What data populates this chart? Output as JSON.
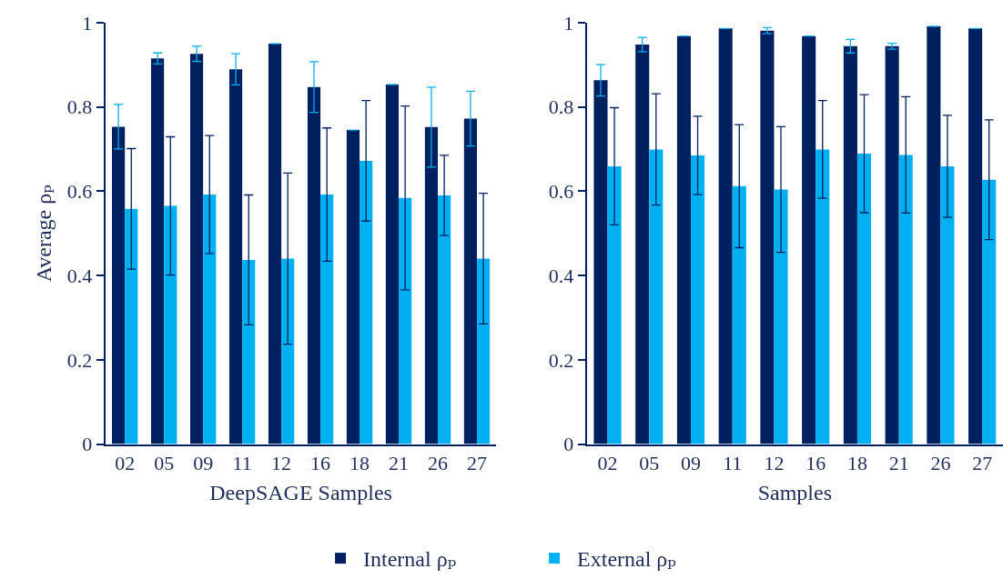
{
  "chart_data": [
    {
      "type": "bar",
      "ylabel": "Average ρₚ",
      "xlabel": "DeepSAGE Samples",
      "categories": [
        "02",
        "05",
        "09",
        "11",
        "12",
        "16",
        "18",
        "21",
        "26",
        "27"
      ],
      "ylim": [
        0,
        1
      ],
      "yticks": [
        0,
        0.2,
        0.4,
        0.6,
        0.8,
        1
      ],
      "legend": "bottom",
      "series": [
        {
          "name": "Internal ρₚ",
          "color": "#002060",
          "values": [
            0.753,
            0.915,
            0.926,
            0.889,
            0.95,
            0.847,
            0.745,
            0.853,
            0.752,
            0.772
          ],
          "errors": [
            0.053,
            0.013,
            0.018,
            0.037,
            null,
            0.06,
            null,
            null,
            0.095,
            0.065
          ]
        },
        {
          "name": "External ρₚ",
          "color": "#00b0f0",
          "values": [
            0.558,
            0.565,
            0.592,
            0.437,
            0.44,
            0.592,
            0.672,
            0.584,
            0.59,
            0.44
          ],
          "errors": [
            0.143,
            0.164,
            0.14,
            0.154,
            0.203,
            0.158,
            0.143,
            0.218,
            0.095,
            0.155
          ]
        }
      ]
    },
    {
      "type": "bar",
      "xlabel": "Samples",
      "categories": [
        "02",
        "05",
        "09",
        "11",
        "12",
        "16",
        "18",
        "21",
        "26",
        "27"
      ],
      "ylim": [
        0,
        1
      ],
      "yticks": [
        0,
        0.2,
        0.4,
        0.6,
        0.8,
        1
      ],
      "series": [
        {
          "color": "#002060",
          "values": [
            0.863,
            0.948,
            0.968,
            0.986,
            0.981,
            0.968,
            0.944,
            0.944,
            0.991,
            0.986
          ],
          "errors": [
            0.037,
            0.017,
            null,
            null,
            0.007,
            null,
            0.016,
            0.007,
            null,
            null
          ]
        },
        {
          "color": "#00b0f0",
          "values": [
            0.659,
            0.699,
            0.685,
            0.612,
            0.604,
            0.699,
            0.689,
            0.686,
            0.659,
            0.627
          ],
          "errors": [
            0.139,
            0.132,
            0.093,
            0.146,
            0.149,
            0.116,
            0.14,
            0.138,
            0.121,
            0.142
          ]
        }
      ]
    }
  ]
}
